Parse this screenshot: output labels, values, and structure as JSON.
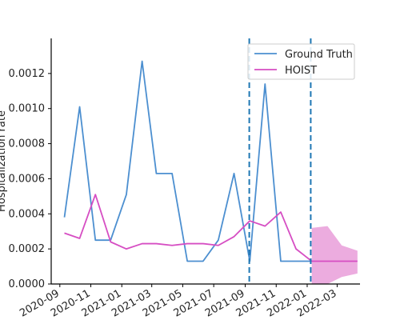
{
  "chart_data": {
    "type": "line",
    "xlabel": "",
    "ylabel": "Hospitalization rate",
    "ylim": [
      0,
      0.0014
    ],
    "xlim": [
      "2020-08-15",
      "2022-04-15"
    ],
    "grid": false,
    "legend_position": "top-right",
    "yticks": [
      "0.0000",
      "0.0002",
      "0.0004",
      "0.0006",
      "0.0008",
      "0.0010",
      "0.0012"
    ],
    "xticks": [
      "2020-09",
      "2020-11",
      "2021-01",
      "2021-03",
      "2021-05",
      "2021-07",
      "2021-09",
      "2021-11",
      "2022-01",
      "2022-03"
    ],
    "vlines": [
      {
        "x": "2021-09-09",
        "style": "dashed",
        "color": "#1f77b4"
      },
      {
        "x": "2022-01-08",
        "style": "dashed",
        "color": "#1f77b4"
      }
    ],
    "series": [
      {
        "name": "Ground Truth",
        "color": "#4c8fd0",
        "points": [
          {
            "x": "2020-09-10",
            "y": 0.00038
          },
          {
            "x": "2020-10-10",
            "y": 0.00101
          },
          {
            "x": "2020-11-10",
            "y": 0.00025
          },
          {
            "x": "2020-12-10",
            "y": 0.00025
          },
          {
            "x": "2021-01-10",
            "y": 0.00051
          },
          {
            "x": "2021-02-10",
            "y": 0.00127
          },
          {
            "x": "2021-03-10",
            "y": 0.00063
          },
          {
            "x": "2021-04-10",
            "y": 0.00063
          },
          {
            "x": "2021-05-10",
            "y": 0.00013
          },
          {
            "x": "2021-06-10",
            "y": 0.00013
          },
          {
            "x": "2021-07-10",
            "y": 0.00025
          },
          {
            "x": "2021-08-10",
            "y": 0.00063
          },
          {
            "x": "2021-09-10",
            "y": 0.00013
          },
          {
            "x": "2021-10-10",
            "y": 0.00114
          },
          {
            "x": "2021-11-10",
            "y": 0.00013
          },
          {
            "x": "2021-12-10",
            "y": 0.00013
          },
          {
            "x": "2022-01-10",
            "y": 0.00013
          }
        ]
      },
      {
        "name": "HOIST",
        "color": "#d64ec3",
        "points": [
          {
            "x": "2020-09-10",
            "y": 0.00029
          },
          {
            "x": "2020-10-10",
            "y": 0.00026
          },
          {
            "x": "2020-11-10",
            "y": 0.00051
          },
          {
            "x": "2020-12-10",
            "y": 0.00024
          },
          {
            "x": "2021-01-10",
            "y": 0.0002
          },
          {
            "x": "2021-02-10",
            "y": 0.00023
          },
          {
            "x": "2021-03-10",
            "y": 0.00023
          },
          {
            "x": "2021-04-10",
            "y": 0.00022
          },
          {
            "x": "2021-05-10",
            "y": 0.00023
          },
          {
            "x": "2021-06-10",
            "y": 0.00023
          },
          {
            "x": "2021-07-10",
            "y": 0.00022
          },
          {
            "x": "2021-08-10",
            "y": 0.00027
          },
          {
            "x": "2021-09-10",
            "y": 0.00036
          },
          {
            "x": "2021-10-10",
            "y": 0.00033
          },
          {
            "x": "2021-11-10",
            "y": 0.00041
          },
          {
            "x": "2021-12-10",
            "y": 0.0002
          },
          {
            "x": "2022-01-10",
            "y": 0.00013
          },
          {
            "x": "2022-02-10",
            "y": 0.00013
          },
          {
            "x": "2022-03-10",
            "y": 0.00013
          },
          {
            "x": "2022-04-10",
            "y": 0.00013
          }
        ],
        "band": {
          "color": "#ecacdf",
          "points": [
            {
              "x": "2022-01-10",
              "low": 0.0,
              "high": 0.00032
            },
            {
              "x": "2022-02-10",
              "low": 0.0,
              "high": 0.00033
            },
            {
              "x": "2022-03-10",
              "low": 4e-05,
              "high": 0.00022
            },
            {
              "x": "2022-04-10",
              "low": 6e-05,
              "high": 0.00019
            }
          ]
        }
      }
    ]
  }
}
